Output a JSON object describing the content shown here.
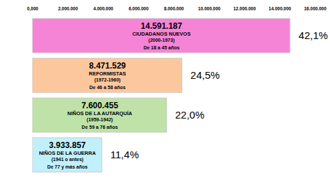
{
  "chart_data": {
    "type": "bar",
    "orientation": "horizontal",
    "categories": [
      "CIUDADANOS NUEVOS",
      "REFORMISTAS",
      "NIÑOS DE LA AUTARQUÍA",
      "NIÑOS DE LA GUERRA"
    ],
    "periods": [
      "(2000-1973)",
      "(1972-1960)",
      "(1959-1942)",
      "(1941 o antes)"
    ],
    "ages": [
      "De 18 a 45 años",
      "De 46 a 58 años",
      "De 59 a 76 años",
      "De 77 y más años"
    ],
    "values": [
      14591187,
      8471529,
      7600455,
      3933857
    ],
    "value_labels": [
      "14.591.187",
      "8.471.529",
      "7.600.455",
      "3.933.857"
    ],
    "percentages": [
      42.1,
      24.5,
      22.0,
      11.4
    ],
    "percentage_labels": [
      "42,1%",
      "24,5%",
      "22,0%",
      "11,4%"
    ],
    "colors": [
      "#f584d6",
      "#fdc79e",
      "#bfe2a8",
      "#c2f0fa"
    ],
    "data_labels": true,
    "xlim": [
      0,
      16000000
    ],
    "xticks": [
      {
        "value": 0,
        "label": "0,000"
      },
      {
        "value": 2000000,
        "label": "2.000.000"
      },
      {
        "value": 4000000,
        "label": "4.000.000"
      },
      {
        "value": 6000000,
        "label": "6.000.000"
      },
      {
        "value": 8000000,
        "label": "8.000.000"
      },
      {
        "value": 10000000,
        "label": "10.000.000"
      },
      {
        "value": 12000000,
        "label": "12.000.000"
      },
      {
        "value": 14000000,
        "label": "14.000.000"
      },
      {
        "value": 16000000,
        "label": "16.000.000"
      }
    ],
    "grid": false
  }
}
